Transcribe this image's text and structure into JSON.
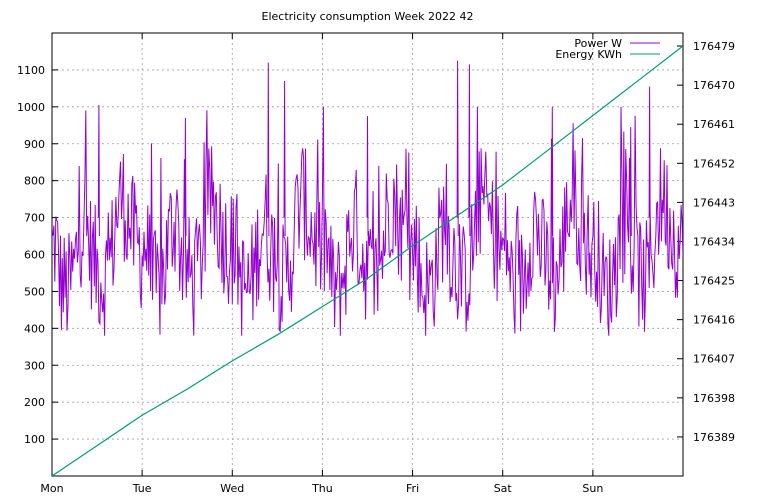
{
  "chart_data": {
    "type": "line",
    "title": "Electricity consumption Week 2022 42",
    "x_tick_labels": [
      "Mon",
      "Tue",
      "Wed",
      "Thu",
      "Fri",
      "Sat",
      "Sun"
    ],
    "xlim": [
      0,
      7
    ],
    "y_left": {
      "range": [
        0,
        1200
      ],
      "ticks": [
        100,
        200,
        300,
        400,
        500,
        600,
        700,
        800,
        900,
        1000,
        1100
      ]
    },
    "y_right": {
      "range": [
        176380,
        176482
      ],
      "ticks": [
        176389,
        176398,
        176407,
        176416,
        176425,
        176434,
        176443,
        176452,
        176461,
        176470,
        176479
      ]
    },
    "grid": true,
    "legend_position": "top-right",
    "series": [
      {
        "name": "Power W",
        "axis": "left",
        "color": "#9400d3",
        "style": "noisy 15-minute samples",
        "daily_profile": [
          {
            "x": 0.0,
            "y": 600
          },
          {
            "x": 0.04,
            "y": 640
          },
          {
            "x": 0.1,
            "y": 520
          },
          {
            "x": 0.18,
            "y": 500
          },
          {
            "x": 0.25,
            "y": 560
          },
          {
            "x": 0.3,
            "y": 650
          },
          {
            "x": 0.36,
            "y": 700
          },
          {
            "x": 0.42,
            "y": 620
          },
          {
            "x": 0.5,
            "y": 560
          },
          {
            "x": 0.58,
            "y": 520
          },
          {
            "x": 0.66,
            "y": 600
          },
          {
            "x": 0.72,
            "y": 720
          },
          {
            "x": 0.78,
            "y": 760
          },
          {
            "x": 0.84,
            "y": 700
          },
          {
            "x": 0.92,
            "y": 640
          },
          {
            "x": 1.0,
            "y": 600
          }
        ],
        "peaks": [
          {
            "x": 0.52,
            "y": 1005
          },
          {
            "x": 1.48,
            "y": 970
          },
          {
            "x": 2.4,
            "y": 1120
          },
          {
            "x": 2.58,
            "y": 1070
          },
          {
            "x": 3.5,
            "y": 975
          },
          {
            "x": 4.5,
            "y": 1125
          },
          {
            "x": 4.63,
            "y": 1115
          },
          {
            "x": 5.55,
            "y": 1000
          },
          {
            "x": 6.42,
            "y": 945
          },
          {
            "x": 6.63,
            "y": 1055
          }
        ]
      },
      {
        "name": "Energy KWh",
        "axis": "right",
        "color": "#009e73",
        "points": [
          {
            "x": 0.0,
            "y": 176380.0
          },
          {
            "x": 0.5,
            "y": 176387.0
          },
          {
            "x": 1.0,
            "y": 176394.0
          },
          {
            "x": 1.5,
            "y": 176400.0
          },
          {
            "x": 2.0,
            "y": 176406.5
          },
          {
            "x": 2.5,
            "y": 176412.5
          },
          {
            "x": 3.0,
            "y": 176419.0
          },
          {
            "x": 3.5,
            "y": 176425.5
          },
          {
            "x": 4.0,
            "y": 176433.0
          },
          {
            "x": 4.5,
            "y": 176440.0
          },
          {
            "x": 5.0,
            "y": 176447.0
          },
          {
            "x": 5.5,
            "y": 176455.0
          },
          {
            "x": 6.0,
            "y": 176463.0
          },
          {
            "x": 6.5,
            "y": 176471.0
          },
          {
            "x": 7.0,
            "y": 176479.0
          }
        ]
      }
    ]
  }
}
